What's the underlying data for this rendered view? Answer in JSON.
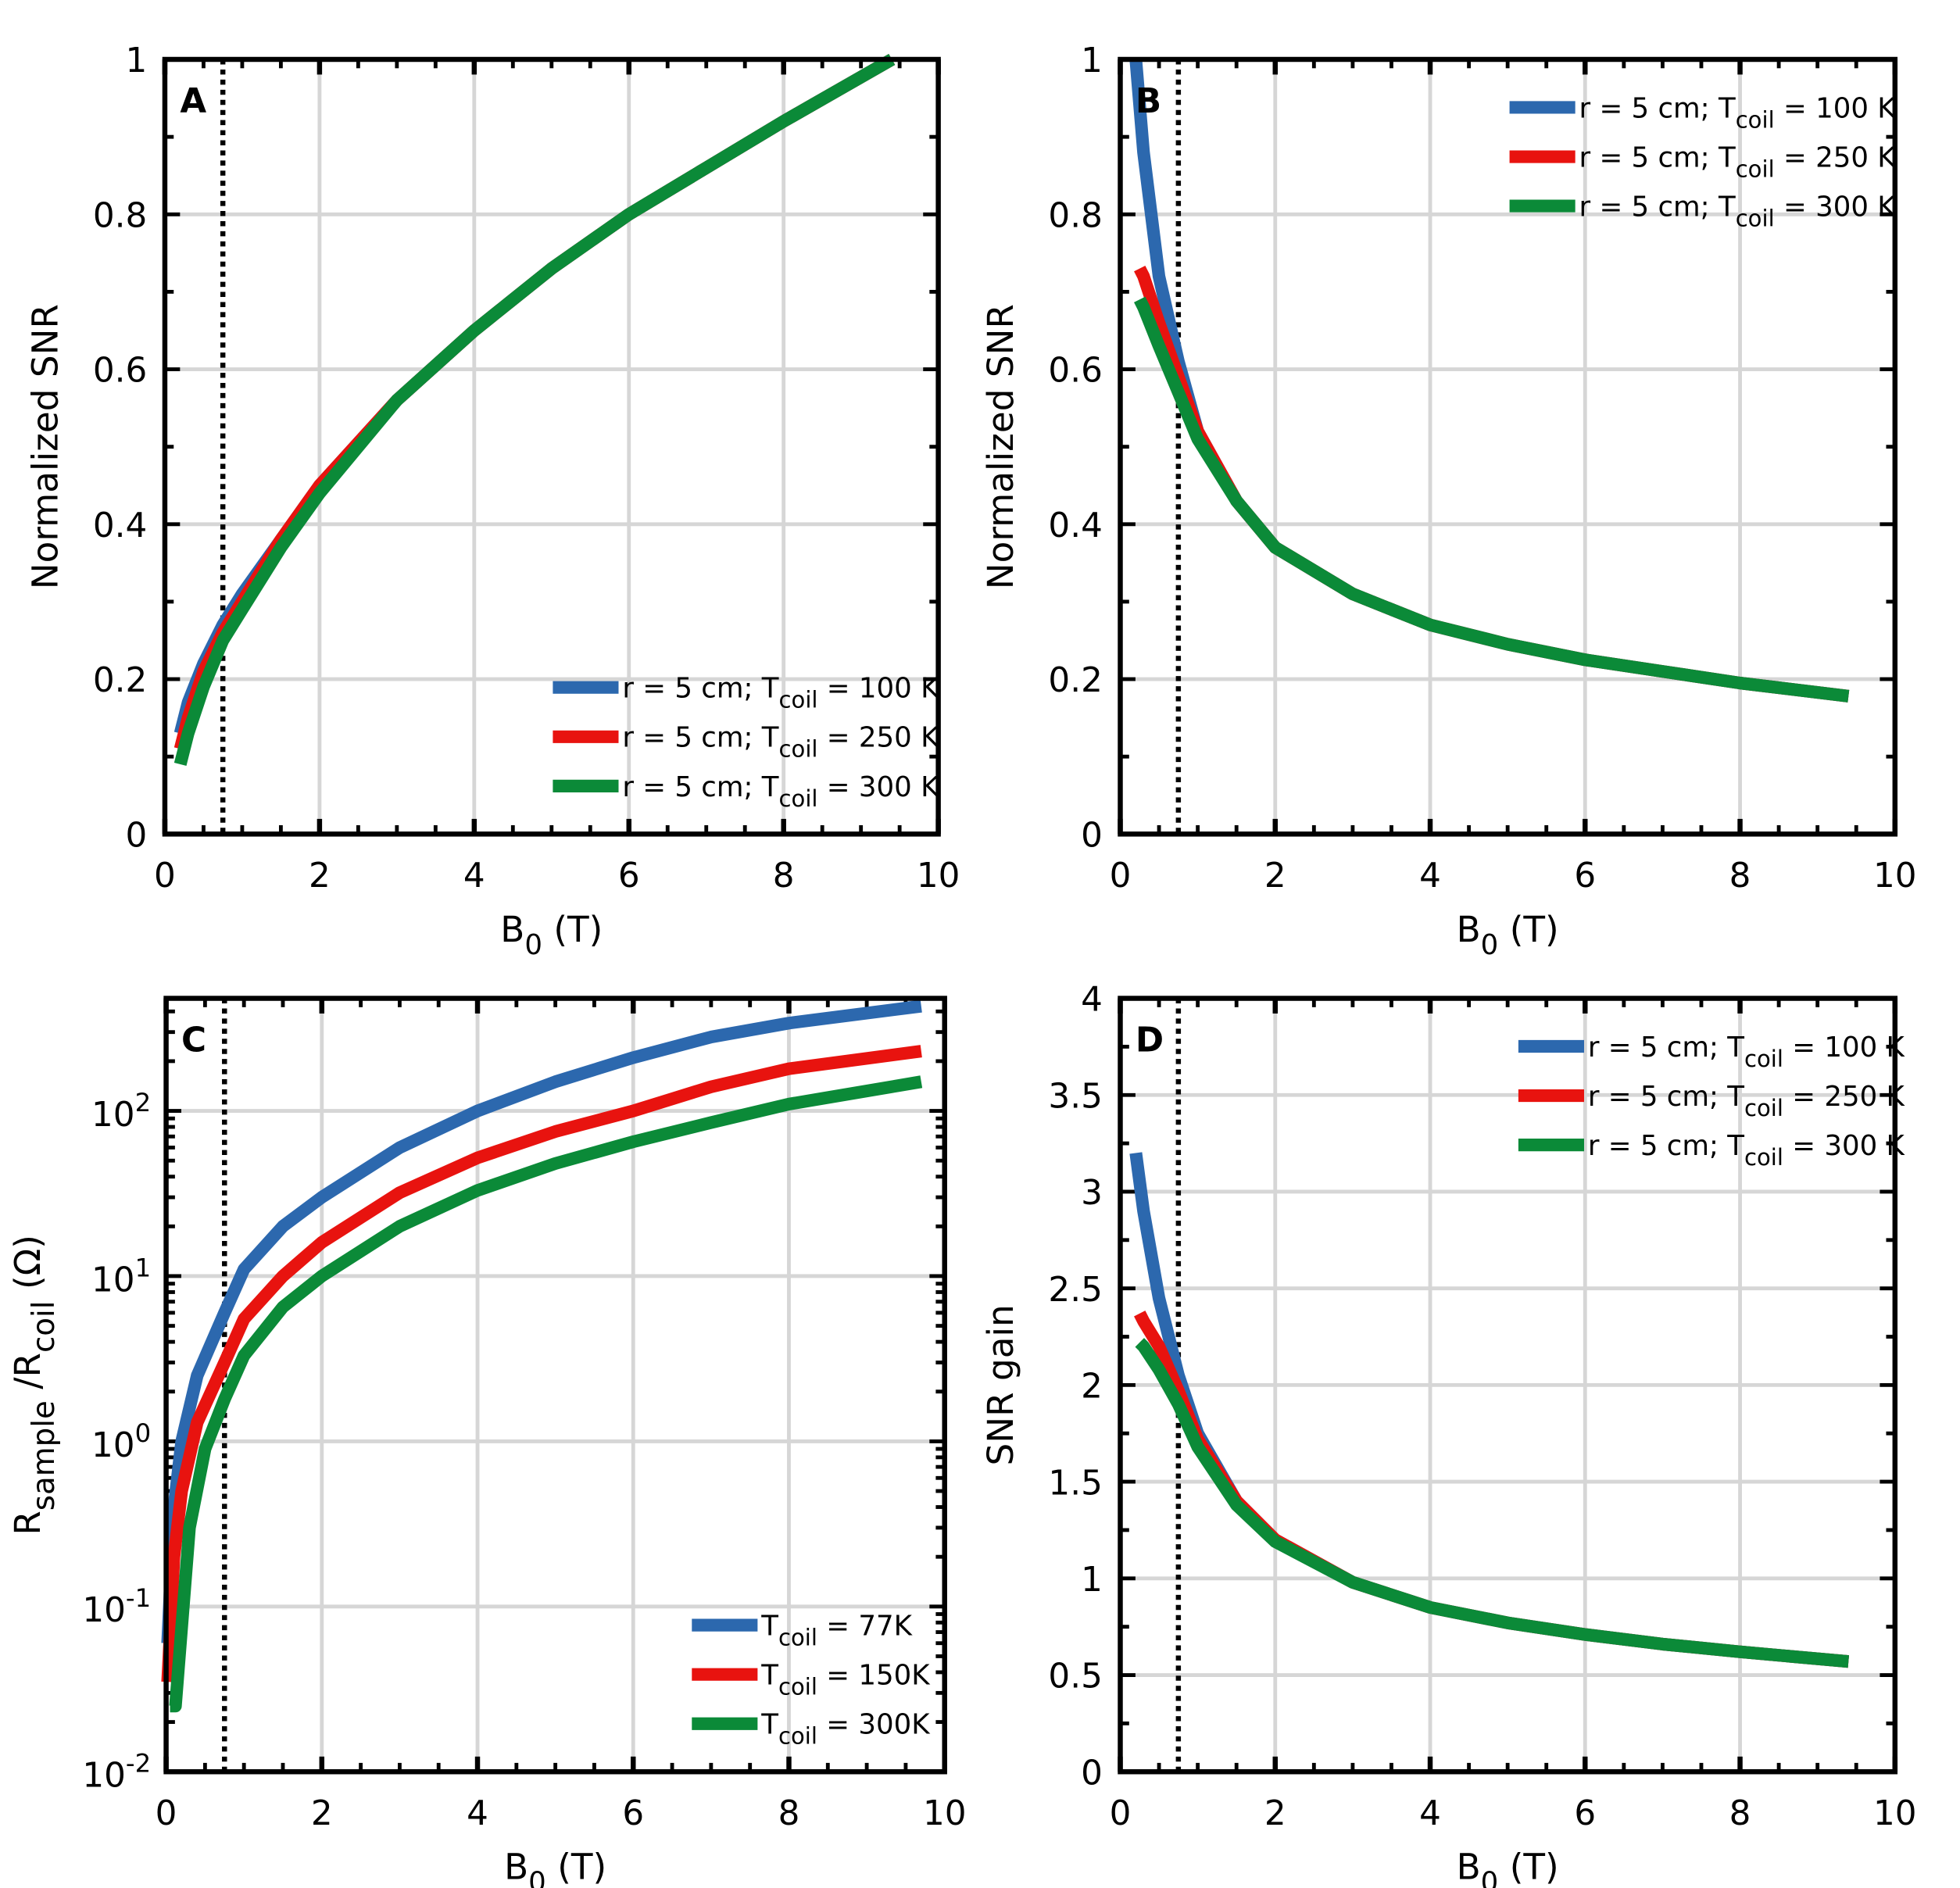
{
  "colors": {
    "blue": "#2c68ae",
    "red": "#e8130f",
    "green": "#0b8a38",
    "grid": "#d6d6d6"
  },
  "chart_data": [
    {
      "panel": "A",
      "type": "line",
      "xlabel": [
        {
          "t": "B"
        },
        {
          "t": "0",
          "sub": true
        },
        {
          "t": " (T)"
        }
      ],
      "ylabel": [
        {
          "t": "Normalized SNR"
        }
      ],
      "xlim": [
        0,
        10
      ],
      "ylim": [
        0,
        1
      ],
      "yscale": "linear",
      "xticks": [
        0,
        2,
        4,
        6,
        8,
        10
      ],
      "yticks": [
        0,
        0.2,
        0.4,
        0.6,
        0.8,
        1
      ],
      "ytick_labels": [
        "0",
        "0.2",
        "0.4",
        "0.6",
        "0.8",
        "1"
      ],
      "xminor": 0.5,
      "yminor": 0.1,
      "grid": true,
      "vline": 0.75,
      "legend": "bottom-right",
      "series": [
        {
          "name": "r = 5 cm; T_coil = 100 K",
          "label": [
            {
              "t": "r = 5 cm; T"
            },
            {
              "t": "coil",
              "sub": true
            },
            {
              "t": "  = 100 K"
            }
          ],
          "color": "blue",
          "x": [
            0.2,
            0.3,
            0.5,
            0.75,
            1,
            1.5,
            2,
            3,
            4,
            5,
            6,
            7,
            8,
            9.4
          ],
          "y": [
            0.13,
            0.17,
            0.22,
            0.27,
            0.31,
            0.38,
            0.45,
            0.56,
            0.65,
            0.73,
            0.8,
            0.86,
            0.92,
            1.0
          ]
        },
        {
          "name": "r = 5 cm; T_coil = 250 K",
          "label": [
            {
              "t": "r = 5 cm; T"
            },
            {
              "t": "coil",
              "sub": true
            },
            {
              "t": "  = 250 K"
            }
          ],
          "color": "red",
          "x": [
            0.2,
            0.3,
            0.5,
            0.75,
            1,
            1.5,
            2,
            3,
            4,
            5,
            6,
            7,
            8,
            9.4
          ],
          "y": [
            0.11,
            0.15,
            0.21,
            0.26,
            0.3,
            0.38,
            0.45,
            0.56,
            0.65,
            0.73,
            0.8,
            0.86,
            0.92,
            1.0
          ]
        },
        {
          "name": "r = 5 cm; T_coil = 300 K",
          "label": [
            {
              "t": "r = 5 cm; T"
            },
            {
              "t": "coil",
              "sub": true
            },
            {
              "t": "  = 300 K"
            }
          ],
          "color": "green",
          "x": [
            0.2,
            0.3,
            0.5,
            0.75,
            1,
            1.5,
            2,
            3,
            4,
            5,
            6,
            7,
            8,
            9.4
          ],
          "y": [
            0.09,
            0.13,
            0.19,
            0.25,
            0.29,
            0.37,
            0.44,
            0.56,
            0.65,
            0.73,
            0.8,
            0.86,
            0.92,
            1.0
          ]
        }
      ]
    },
    {
      "panel": "B",
      "type": "line",
      "xlabel": [
        {
          "t": "B"
        },
        {
          "t": "0",
          "sub": true
        },
        {
          "t": " (T)"
        }
      ],
      "ylabel": [
        {
          "t": "Normalized SNR"
        }
      ],
      "xlim": [
        0,
        10
      ],
      "ylim": [
        0,
        1
      ],
      "yscale": "linear",
      "xticks": [
        0,
        2,
        4,
        6,
        8,
        10
      ],
      "yticks": [
        0,
        0.2,
        0.4,
        0.6,
        0.8,
        1
      ],
      "ytick_labels": [
        "0",
        "0.2",
        "0.4",
        "0.6",
        "0.8",
        "1"
      ],
      "xminor": 0.5,
      "yminor": 0.1,
      "grid": true,
      "vline": 0.75,
      "legend": "top-right",
      "series": [
        {
          "name": "r = 5 cm; T_coil = 100 K",
          "label": [
            {
              "t": "r = 5 cm; T"
            },
            {
              "t": "coil",
              "sub": true
            },
            {
              "t": "  = 100 K"
            }
          ],
          "color": "blue",
          "x": [
            0.2,
            0.3,
            0.5,
            0.75,
            1,
            1.5,
            2,
            3,
            4,
            5,
            6,
            7,
            8,
            9.4
          ],
          "y": [
            1.0,
            0.88,
            0.72,
            0.61,
            0.52,
            0.43,
            0.37,
            0.31,
            0.27,
            0.245,
            0.225,
            0.21,
            0.195,
            0.178
          ]
        },
        {
          "name": "r = 5 cm; T_coil = 250 K",
          "label": [
            {
              "t": "r = 5 cm; T"
            },
            {
              "t": "coil",
              "sub": true
            },
            {
              "t": "  = 250 K"
            }
          ],
          "color": "red",
          "x": [
            0.25,
            0.3,
            0.5,
            0.75,
            1,
            1.5,
            2,
            3,
            4,
            5,
            6,
            7,
            8,
            9.4
          ],
          "y": [
            0.73,
            0.72,
            0.66,
            0.59,
            0.52,
            0.43,
            0.37,
            0.31,
            0.27,
            0.245,
            0.225,
            0.21,
            0.195,
            0.178
          ]
        },
        {
          "name": "r = 5 cm; T_coil = 300 K",
          "label": [
            {
              "t": "r = 5 cm; T"
            },
            {
              "t": "coil",
              "sub": true
            },
            {
              "t": "  = 300 K"
            }
          ],
          "color": "green",
          "x": [
            0.25,
            0.3,
            0.5,
            0.75,
            1,
            1.5,
            2,
            3,
            4,
            5,
            6,
            7,
            8,
            9.4
          ],
          "y": [
            0.69,
            0.68,
            0.63,
            0.57,
            0.51,
            0.43,
            0.37,
            0.31,
            0.27,
            0.245,
            0.225,
            0.21,
            0.195,
            0.178
          ]
        }
      ]
    },
    {
      "panel": "C",
      "type": "line",
      "xlabel": [
        {
          "t": "B"
        },
        {
          "t": "0",
          "sub": true
        },
        {
          "t": " (T)"
        }
      ],
      "ylabel": [
        {
          "t": "R"
        },
        {
          "t": "sample",
          "sub": true
        },
        {
          "t": " /R"
        },
        {
          "t": "coil",
          "sub": true
        },
        {
          "t": " (Ω)"
        }
      ],
      "xlim": [
        0,
        10
      ],
      "ylim": [
        0.01,
        480
      ],
      "yscale": "log",
      "xticks": [
        0,
        2,
        4,
        6,
        8,
        10
      ],
      "yticks": [
        0.01,
        0.1,
        1,
        10,
        100
      ],
      "ytick_labels": [
        [
          "10",
          "-2"
        ],
        [
          "10",
          "-1"
        ],
        [
          "10",
          "0"
        ],
        [
          "10",
          "1"
        ],
        [
          "10",
          "2"
        ]
      ],
      "xminor": 0.5,
      "grid": true,
      "vline": 0.75,
      "legend": "bottom-right",
      "series": [
        {
          "name": "T_coil = 77K",
          "label": [
            {
              "t": "T"
            },
            {
              "t": "coil",
              "sub": true
            },
            {
              "t": " = 77K"
            }
          ],
          "color": "blue",
          "x": [
            0.02,
            0.1,
            0.2,
            0.4,
            0.75,
            1,
            1.5,
            2,
            3,
            4,
            5,
            6,
            7,
            8,
            9.7
          ],
          "y": [
            0.06,
            0.4,
            1.0,
            2.5,
            6,
            11,
            20,
            30,
            60,
            100,
            150,
            210,
            280,
            340,
            430
          ]
        },
        {
          "name": "T_coil = 150K",
          "label": [
            {
              "t": "T"
            },
            {
              "t": "coil",
              "sub": true
            },
            {
              "t": " = 150K"
            }
          ],
          "color": "red",
          "x": [
            0.02,
            0.1,
            0.2,
            0.4,
            0.75,
            1,
            1.5,
            2,
            3,
            4,
            5,
            6,
            7,
            8,
            9.7
          ],
          "y": [
            0.035,
            0.2,
            0.5,
            1.3,
            3,
            5.5,
            10,
            16,
            32,
            52,
            75,
            100,
            140,
            180,
            230
          ]
        },
        {
          "name": "T_coil = 300K",
          "label": [
            {
              "t": "T"
            },
            {
              "t": "coil",
              "sub": true
            },
            {
              "t": " = 300K"
            }
          ],
          "color": "green",
          "x": [
            0.05,
            0.12,
            0.3,
            0.5,
            0.75,
            1,
            1.5,
            2,
            3,
            4,
            5,
            6,
            7,
            8,
            9.7
          ],
          "y": [
            0.025,
            0.025,
            0.3,
            0.9,
            1.8,
            3.3,
            6.5,
            10,
            20,
            33,
            48,
            65,
            85,
            110,
            150
          ]
        }
      ]
    },
    {
      "panel": "D",
      "type": "line",
      "xlabel": [
        {
          "t": "B"
        },
        {
          "t": "0",
          "sub": true
        },
        {
          "t": " (T)"
        }
      ],
      "ylabel": [
        {
          "t": "SNR gain"
        }
      ],
      "xlim": [
        0,
        10
      ],
      "ylim": [
        0,
        4
      ],
      "yscale": "linear",
      "xticks": [
        0,
        2,
        4,
        6,
        8,
        10
      ],
      "yticks": [
        0,
        0.5,
        1,
        1.5,
        2,
        2.5,
        3,
        3.5,
        4
      ],
      "ytick_labels": [
        "0",
        "0.5",
        "1",
        "1.5",
        "2",
        "2.5",
        "3",
        "3.5",
        "4"
      ],
      "xminor": 0.5,
      "yminor": 0.25,
      "grid": true,
      "vline": 0.75,
      "legend": "top-right",
      "series": [
        {
          "name": "r = 5 cm; T_coil = 100 K",
          "label": [
            {
              "t": "r = 5 cm; T"
            },
            {
              "t": "coil",
              "sub": true
            },
            {
              "t": " = 100 K"
            }
          ],
          "color": "blue",
          "x": [
            0.2,
            0.3,
            0.5,
            0.75,
            1,
            1.5,
            2,
            3,
            4,
            5,
            6,
            7,
            8,
            9.4
          ],
          "y": [
            3.2,
            2.9,
            2.45,
            2.05,
            1.75,
            1.4,
            1.2,
            0.98,
            0.85,
            0.77,
            0.71,
            0.66,
            0.62,
            0.57
          ]
        },
        {
          "name": "r = 5 cm; T_coil = 250 K",
          "label": [
            {
              "t": "r = 5 cm; T"
            },
            {
              "t": "coil",
              "sub": true
            },
            {
              "t": " = 250 K"
            }
          ],
          "color": "red",
          "x": [
            0.25,
            0.3,
            0.5,
            0.75,
            1,
            1.5,
            2,
            3,
            4,
            5,
            6,
            7,
            8,
            9.4
          ],
          "y": [
            2.37,
            2.33,
            2.2,
            1.97,
            1.72,
            1.4,
            1.2,
            0.98,
            0.85,
            0.77,
            0.71,
            0.66,
            0.62,
            0.57
          ]
        },
        {
          "name": "r = 5 cm; T_coil = 300 K",
          "label": [
            {
              "t": "r = 5 cm; T"
            },
            {
              "t": "coil",
              "sub": true
            },
            {
              "t": " = 300 K"
            }
          ],
          "color": "green",
          "x": [
            0.25,
            0.3,
            0.5,
            0.75,
            1,
            1.5,
            2,
            3,
            4,
            5,
            6,
            7,
            8,
            9.4
          ],
          "y": [
            2.22,
            2.2,
            2.08,
            1.9,
            1.68,
            1.38,
            1.19,
            0.98,
            0.85,
            0.77,
            0.71,
            0.66,
            0.62,
            0.57
          ]
        }
      ]
    }
  ]
}
